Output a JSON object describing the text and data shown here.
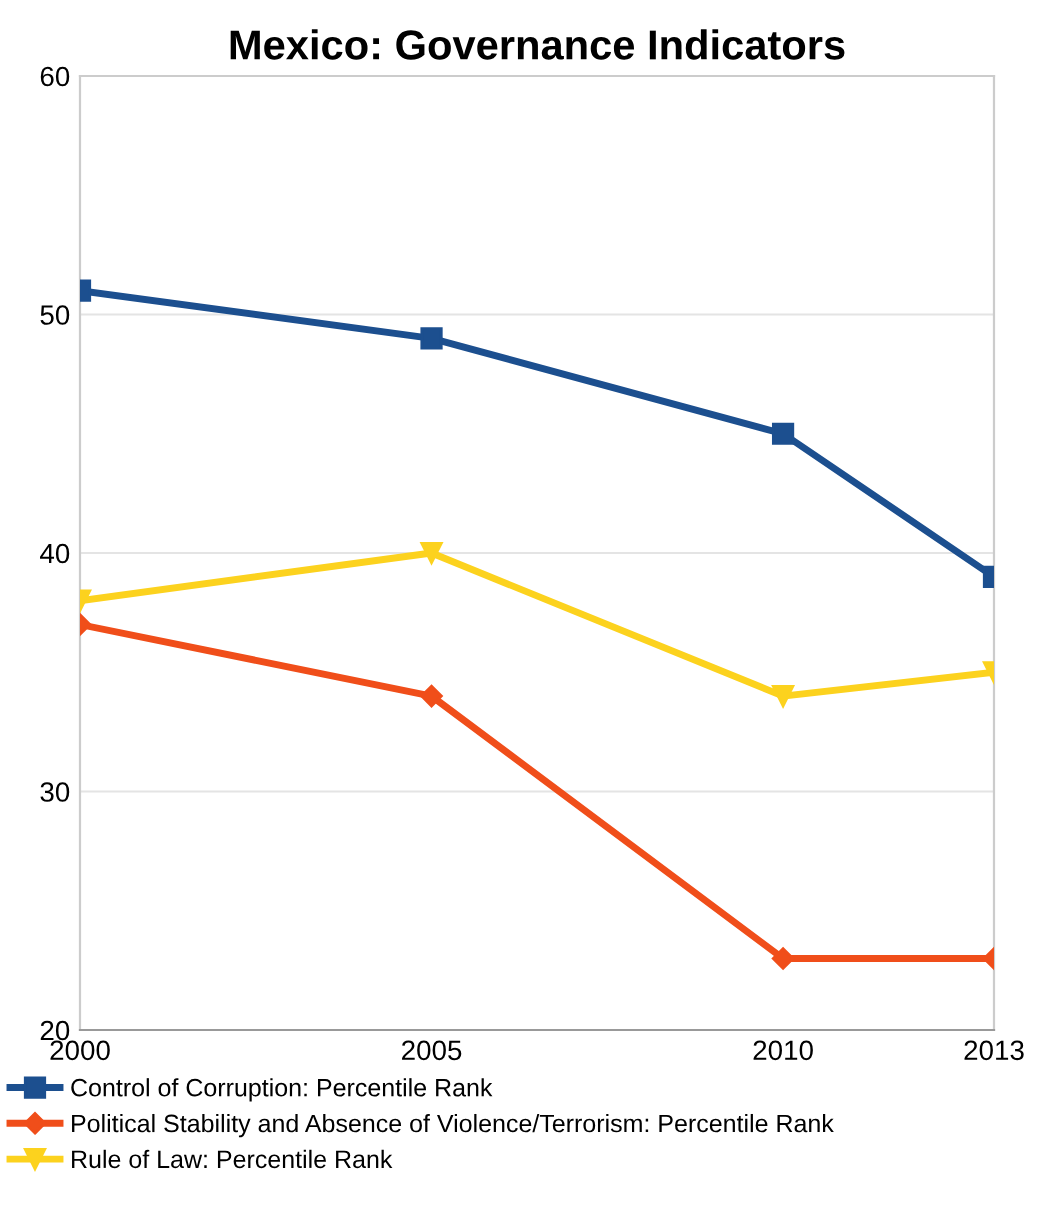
{
  "chart_data": {
    "type": "line",
    "title": "Mexico: Governance Indicators",
    "x": [
      2000,
      2005,
      2010,
      2013
    ],
    "xlim": [
      2000,
      2013
    ],
    "xticks": [
      2000,
      2005,
      2010,
      2013
    ],
    "ylim": [
      20,
      60
    ],
    "yticks": [
      20,
      30,
      40,
      50,
      60
    ],
    "grid": "y",
    "legend": "bottom",
    "line_style": "solid",
    "series": [
      {
        "name": "Control of Corruption: Percentile Rank",
        "color": "#1c4f8f",
        "marker": "square",
        "values": [
          51,
          49,
          45,
          39
        ]
      },
      {
        "name": "Political Stability and Absence of Violence/Terrorism: Percentile Rank",
        "color": "#f04e1a",
        "marker": "diamond",
        "values": [
          37,
          34,
          23,
          23
        ]
      },
      {
        "name": "Rule of Law: Percentile Rank",
        "color": "#fcd21e",
        "marker": "triangle_down",
        "values": [
          38,
          40,
          34,
          35
        ]
      }
    ]
  }
}
